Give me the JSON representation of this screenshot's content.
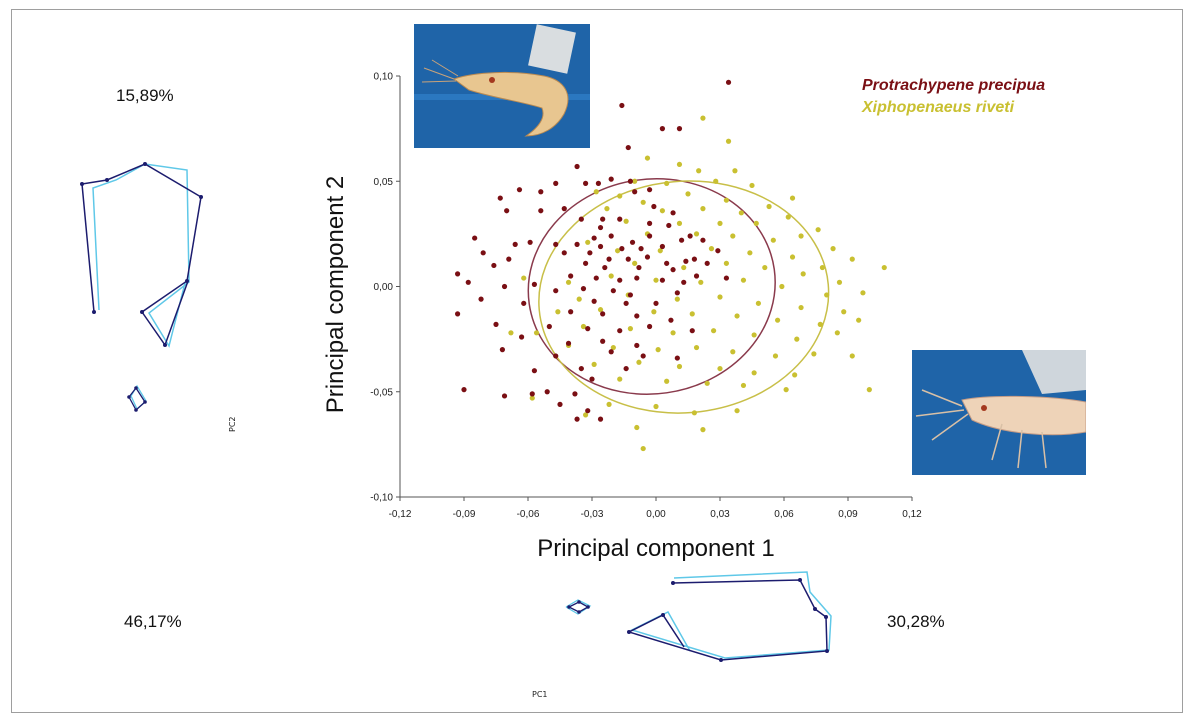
{
  "annotations": {
    "pc2_variance": "15,89%",
    "pc1_variance_left": "46,17%",
    "pc1_variance_right": "30,28%",
    "pc2_axis_tag": "PC2",
    "pc1_axis_tag": "PC1"
  },
  "colors": {
    "protrachypene": "#7a0f14",
    "xiphopenaeus": "#c9c031",
    "ellipse_protrachypene": "#8a3a4c",
    "ellipse_xiphopenaeus": "#c8bf48",
    "wireframe_dark": "#1c1c6e",
    "wireframe_light": "#5fc8e8",
    "photo_background": "#1f64a8"
  },
  "icons": {
    "photo_top": "shrimp-photo-icon",
    "photo_right": "shrimp-head-photo-icon"
  },
  "chart_data": {
    "type": "scatter",
    "title": "",
    "xlabel": "Principal component 1",
    "ylabel": "Principal component 2",
    "xlim": [
      -0.12,
      0.12
    ],
    "ylim": [
      -0.1,
      0.1
    ],
    "x_ticks": [
      "-0,12",
      "-0,09",
      "-0,06",
      "-0,03",
      "0,00",
      "0,03",
      "0,06",
      "0,09",
      "0,12"
    ],
    "y_ticks": [
      "-0,10",
      "-0,05",
      "0,00",
      "0,05",
      "0,10"
    ],
    "x_tick_values": [
      -0.12,
      -0.09,
      -0.06,
      -0.03,
      0.0,
      0.03,
      0.06,
      0.09,
      0.12
    ],
    "y_tick_values": [
      -0.1,
      -0.05,
      0.0,
      0.05,
      0.1
    ],
    "grid": false,
    "legend_position": "top-right",
    "series": [
      {
        "name": "Protrachypene precipua",
        "color": "#7a0f14",
        "ellipse": {
          "cx": -0.002,
          "cy": 0.0,
          "rx": 0.058,
          "ry": 0.051,
          "angle_deg": 8
        },
        "points": [
          [
            0.034,
            0.097
          ],
          [
            -0.016,
            0.086
          ],
          [
            0.003,
            0.075
          ],
          [
            0.011,
            0.075
          ],
          [
            -0.013,
            0.066
          ],
          [
            -0.037,
            0.057
          ],
          [
            -0.021,
            0.051
          ],
          [
            -0.064,
            0.046
          ],
          [
            -0.047,
            0.049
          ],
          [
            -0.033,
            0.049
          ],
          [
            -0.027,
            0.049
          ],
          [
            -0.012,
            0.05
          ],
          [
            -0.003,
            0.046
          ],
          [
            -0.01,
            0.045
          ],
          [
            -0.054,
            0.045
          ],
          [
            -0.073,
            0.042
          ],
          [
            -0.07,
            0.036
          ],
          [
            -0.054,
            0.036
          ],
          [
            -0.043,
            0.037
          ],
          [
            -0.035,
            0.032
          ],
          [
            -0.025,
            0.032
          ],
          [
            -0.001,
            0.038
          ],
          [
            0.008,
            0.035
          ],
          [
            -0.026,
            0.028
          ],
          [
            -0.017,
            0.032
          ],
          [
            -0.003,
            0.03
          ],
          [
            0.006,
            0.029
          ],
          [
            -0.029,
            0.023
          ],
          [
            -0.021,
            0.024
          ],
          [
            -0.011,
            0.021
          ],
          [
            0.016,
            0.024
          ],
          [
            -0.085,
            0.023
          ],
          [
            -0.066,
            0.02
          ],
          [
            -0.059,
            0.021
          ],
          [
            -0.047,
            0.02
          ],
          [
            -0.037,
            0.02
          ],
          [
            -0.026,
            0.019
          ],
          [
            -0.016,
            0.018
          ],
          [
            -0.007,
            0.018
          ],
          [
            0.003,
            0.019
          ],
          [
            0.012,
            0.022
          ],
          [
            0.022,
            0.022
          ],
          [
            0.029,
            0.017
          ],
          [
            -0.081,
            0.016
          ],
          [
            -0.069,
            0.013
          ],
          [
            -0.043,
            0.016
          ],
          [
            -0.031,
            0.016
          ],
          [
            -0.022,
            0.013
          ],
          [
            -0.013,
            0.013
          ],
          [
            -0.004,
            0.014
          ],
          [
            0.005,
            0.011
          ],
          [
            0.014,
            0.012
          ],
          [
            0.024,
            0.011
          ],
          [
            -0.076,
            0.01
          ],
          [
            -0.033,
            0.011
          ],
          [
            -0.024,
            0.009
          ],
          [
            -0.008,
            0.009
          ],
          [
            0.008,
            0.008
          ],
          [
            0.019,
            0.005
          ],
          [
            0.033,
            0.004
          ],
          [
            -0.093,
            0.006
          ],
          [
            -0.088,
            0.002
          ],
          [
            -0.057,
            0.001
          ],
          [
            -0.04,
            0.005
          ],
          [
            -0.028,
            0.004
          ],
          [
            -0.017,
            0.003
          ],
          [
            -0.009,
            0.004
          ],
          [
            0.003,
            0.003
          ],
          [
            0.013,
            0.002
          ],
          [
            -0.071,
            0.0
          ],
          [
            -0.047,
            -0.002
          ],
          [
            -0.034,
            -0.001
          ],
          [
            -0.02,
            -0.002
          ],
          [
            -0.012,
            -0.004
          ],
          [
            0.01,
            -0.003
          ],
          [
            -0.082,
            -0.006
          ],
          [
            -0.062,
            -0.008
          ],
          [
            -0.029,
            -0.007
          ],
          [
            -0.014,
            -0.008
          ],
          [
            0.0,
            -0.008
          ],
          [
            -0.04,
            -0.012
          ],
          [
            -0.025,
            -0.013
          ],
          [
            -0.009,
            -0.014
          ],
          [
            0.007,
            -0.016
          ],
          [
            -0.093,
            -0.013
          ],
          [
            -0.075,
            -0.018
          ],
          [
            -0.05,
            -0.019
          ],
          [
            -0.032,
            -0.02
          ],
          [
            -0.017,
            -0.021
          ],
          [
            -0.003,
            -0.019
          ],
          [
            0.017,
            -0.021
          ],
          [
            -0.063,
            -0.024
          ],
          [
            -0.041,
            -0.027
          ],
          [
            -0.025,
            -0.026
          ],
          [
            -0.009,
            -0.028
          ],
          [
            -0.072,
            -0.03
          ],
          [
            -0.047,
            -0.033
          ],
          [
            -0.021,
            -0.031
          ],
          [
            -0.006,
            -0.033
          ],
          [
            0.01,
            -0.034
          ],
          [
            -0.057,
            -0.04
          ],
          [
            -0.035,
            -0.039
          ],
          [
            -0.014,
            -0.039
          ],
          [
            -0.03,
            -0.044
          ],
          [
            -0.09,
            -0.049
          ],
          [
            -0.071,
            -0.052
          ],
          [
            -0.058,
            -0.051
          ],
          [
            -0.038,
            -0.051
          ],
          [
            -0.045,
            -0.056
          ],
          [
            -0.032,
            -0.059
          ],
          [
            -0.037,
            -0.063
          ],
          [
            -0.026,
            -0.063
          ],
          [
            -0.051,
            -0.05
          ],
          [
            -0.003,
            0.024
          ],
          [
            0.018,
            0.013
          ]
        ]
      },
      {
        "name": "Xiphopenaeus riveti",
        "color": "#c9c031",
        "ellipse": {
          "cx": 0.013,
          "cy": -0.005,
          "rx": 0.068,
          "ry": 0.055,
          "angle_deg": 5
        },
        "points": [
          [
            0.022,
            0.08
          ],
          [
            0.034,
            0.069
          ],
          [
            -0.004,
            0.061
          ],
          [
            0.011,
            0.058
          ],
          [
            0.02,
            0.055
          ],
          [
            0.037,
            0.055
          ],
          [
            -0.01,
            0.05
          ],
          [
            0.005,
            0.049
          ],
          [
            0.028,
            0.05
          ],
          [
            0.045,
            0.048
          ],
          [
            0.064,
            0.042
          ],
          [
            -0.028,
            0.045
          ],
          [
            -0.017,
            0.043
          ],
          [
            -0.006,
            0.04
          ],
          [
            0.015,
            0.044
          ],
          [
            0.033,
            0.041
          ],
          [
            0.053,
            0.038
          ],
          [
            -0.023,
            0.037
          ],
          [
            0.003,
            0.036
          ],
          [
            0.022,
            0.037
          ],
          [
            0.04,
            0.035
          ],
          [
            0.062,
            0.033
          ],
          [
            0.076,
            0.027
          ],
          [
            -0.014,
            0.031
          ],
          [
            0.011,
            0.03
          ],
          [
            0.03,
            0.03
          ],
          [
            0.047,
            0.03
          ],
          [
            0.068,
            0.024
          ],
          [
            -0.004,
            0.025
          ],
          [
            0.019,
            0.025
          ],
          [
            0.036,
            0.024
          ],
          [
            0.055,
            0.022
          ],
          [
            0.083,
            0.018
          ],
          [
            0.092,
            0.013
          ],
          [
            0.107,
            0.009
          ],
          [
            -0.032,
            0.021
          ],
          [
            -0.018,
            0.017
          ],
          [
            0.002,
            0.017
          ],
          [
            0.026,
            0.018
          ],
          [
            0.044,
            0.016
          ],
          [
            0.064,
            0.014
          ],
          [
            0.078,
            0.009
          ],
          [
            -0.01,
            0.011
          ],
          [
            0.013,
            0.009
          ],
          [
            0.033,
            0.011
          ],
          [
            0.051,
            0.009
          ],
          [
            0.069,
            0.006
          ],
          [
            0.086,
            0.002
          ],
          [
            -0.062,
            0.004
          ],
          [
            -0.041,
            0.002
          ],
          [
            -0.021,
            0.005
          ],
          [
            0.0,
            0.003
          ],
          [
            0.021,
            0.002
          ],
          [
            0.041,
            0.003
          ],
          [
            0.059,
            0.0
          ],
          [
            0.08,
            -0.004
          ],
          [
            0.097,
            -0.003
          ],
          [
            -0.036,
            -0.006
          ],
          [
            -0.013,
            -0.004
          ],
          [
            0.01,
            -0.006
          ],
          [
            0.03,
            -0.005
          ],
          [
            0.048,
            -0.008
          ],
          [
            0.068,
            -0.01
          ],
          [
            0.088,
            -0.012
          ],
          [
            -0.046,
            -0.012
          ],
          [
            -0.026,
            -0.011
          ],
          [
            -0.001,
            -0.012
          ],
          [
            0.017,
            -0.013
          ],
          [
            0.038,
            -0.014
          ],
          [
            0.057,
            -0.016
          ],
          [
            0.077,
            -0.018
          ],
          [
            0.095,
            -0.016
          ],
          [
            -0.056,
            -0.022
          ],
          [
            -0.034,
            -0.019
          ],
          [
            -0.012,
            -0.02
          ],
          [
            0.008,
            -0.022
          ],
          [
            0.027,
            -0.021
          ],
          [
            0.046,
            -0.023
          ],
          [
            0.066,
            -0.025
          ],
          [
            0.085,
            -0.022
          ],
          [
            -0.041,
            -0.028
          ],
          [
            -0.02,
            -0.029
          ],
          [
            0.001,
            -0.03
          ],
          [
            0.019,
            -0.029
          ],
          [
            0.036,
            -0.031
          ],
          [
            0.056,
            -0.033
          ],
          [
            0.074,
            -0.032
          ],
          [
            -0.029,
            -0.037
          ],
          [
            -0.008,
            -0.036
          ],
          [
            0.011,
            -0.038
          ],
          [
            0.03,
            -0.039
          ],
          [
            0.046,
            -0.041
          ],
          [
            0.065,
            -0.042
          ],
          [
            -0.017,
            -0.044
          ],
          [
            0.005,
            -0.045
          ],
          [
            0.024,
            -0.046
          ],
          [
            0.041,
            -0.047
          ],
          [
            0.061,
            -0.049
          ],
          [
            0.1,
            -0.049
          ],
          [
            -0.058,
            -0.053
          ],
          [
            -0.022,
            -0.056
          ],
          [
            0.0,
            -0.057
          ],
          [
            0.018,
            -0.06
          ],
          [
            0.038,
            -0.059
          ],
          [
            -0.033,
            -0.061
          ],
          [
            -0.009,
            -0.067
          ],
          [
            0.022,
            -0.068
          ],
          [
            -0.006,
            -0.077
          ],
          [
            -0.068,
            -0.022
          ],
          [
            0.092,
            -0.033
          ]
        ]
      }
    ]
  }
}
